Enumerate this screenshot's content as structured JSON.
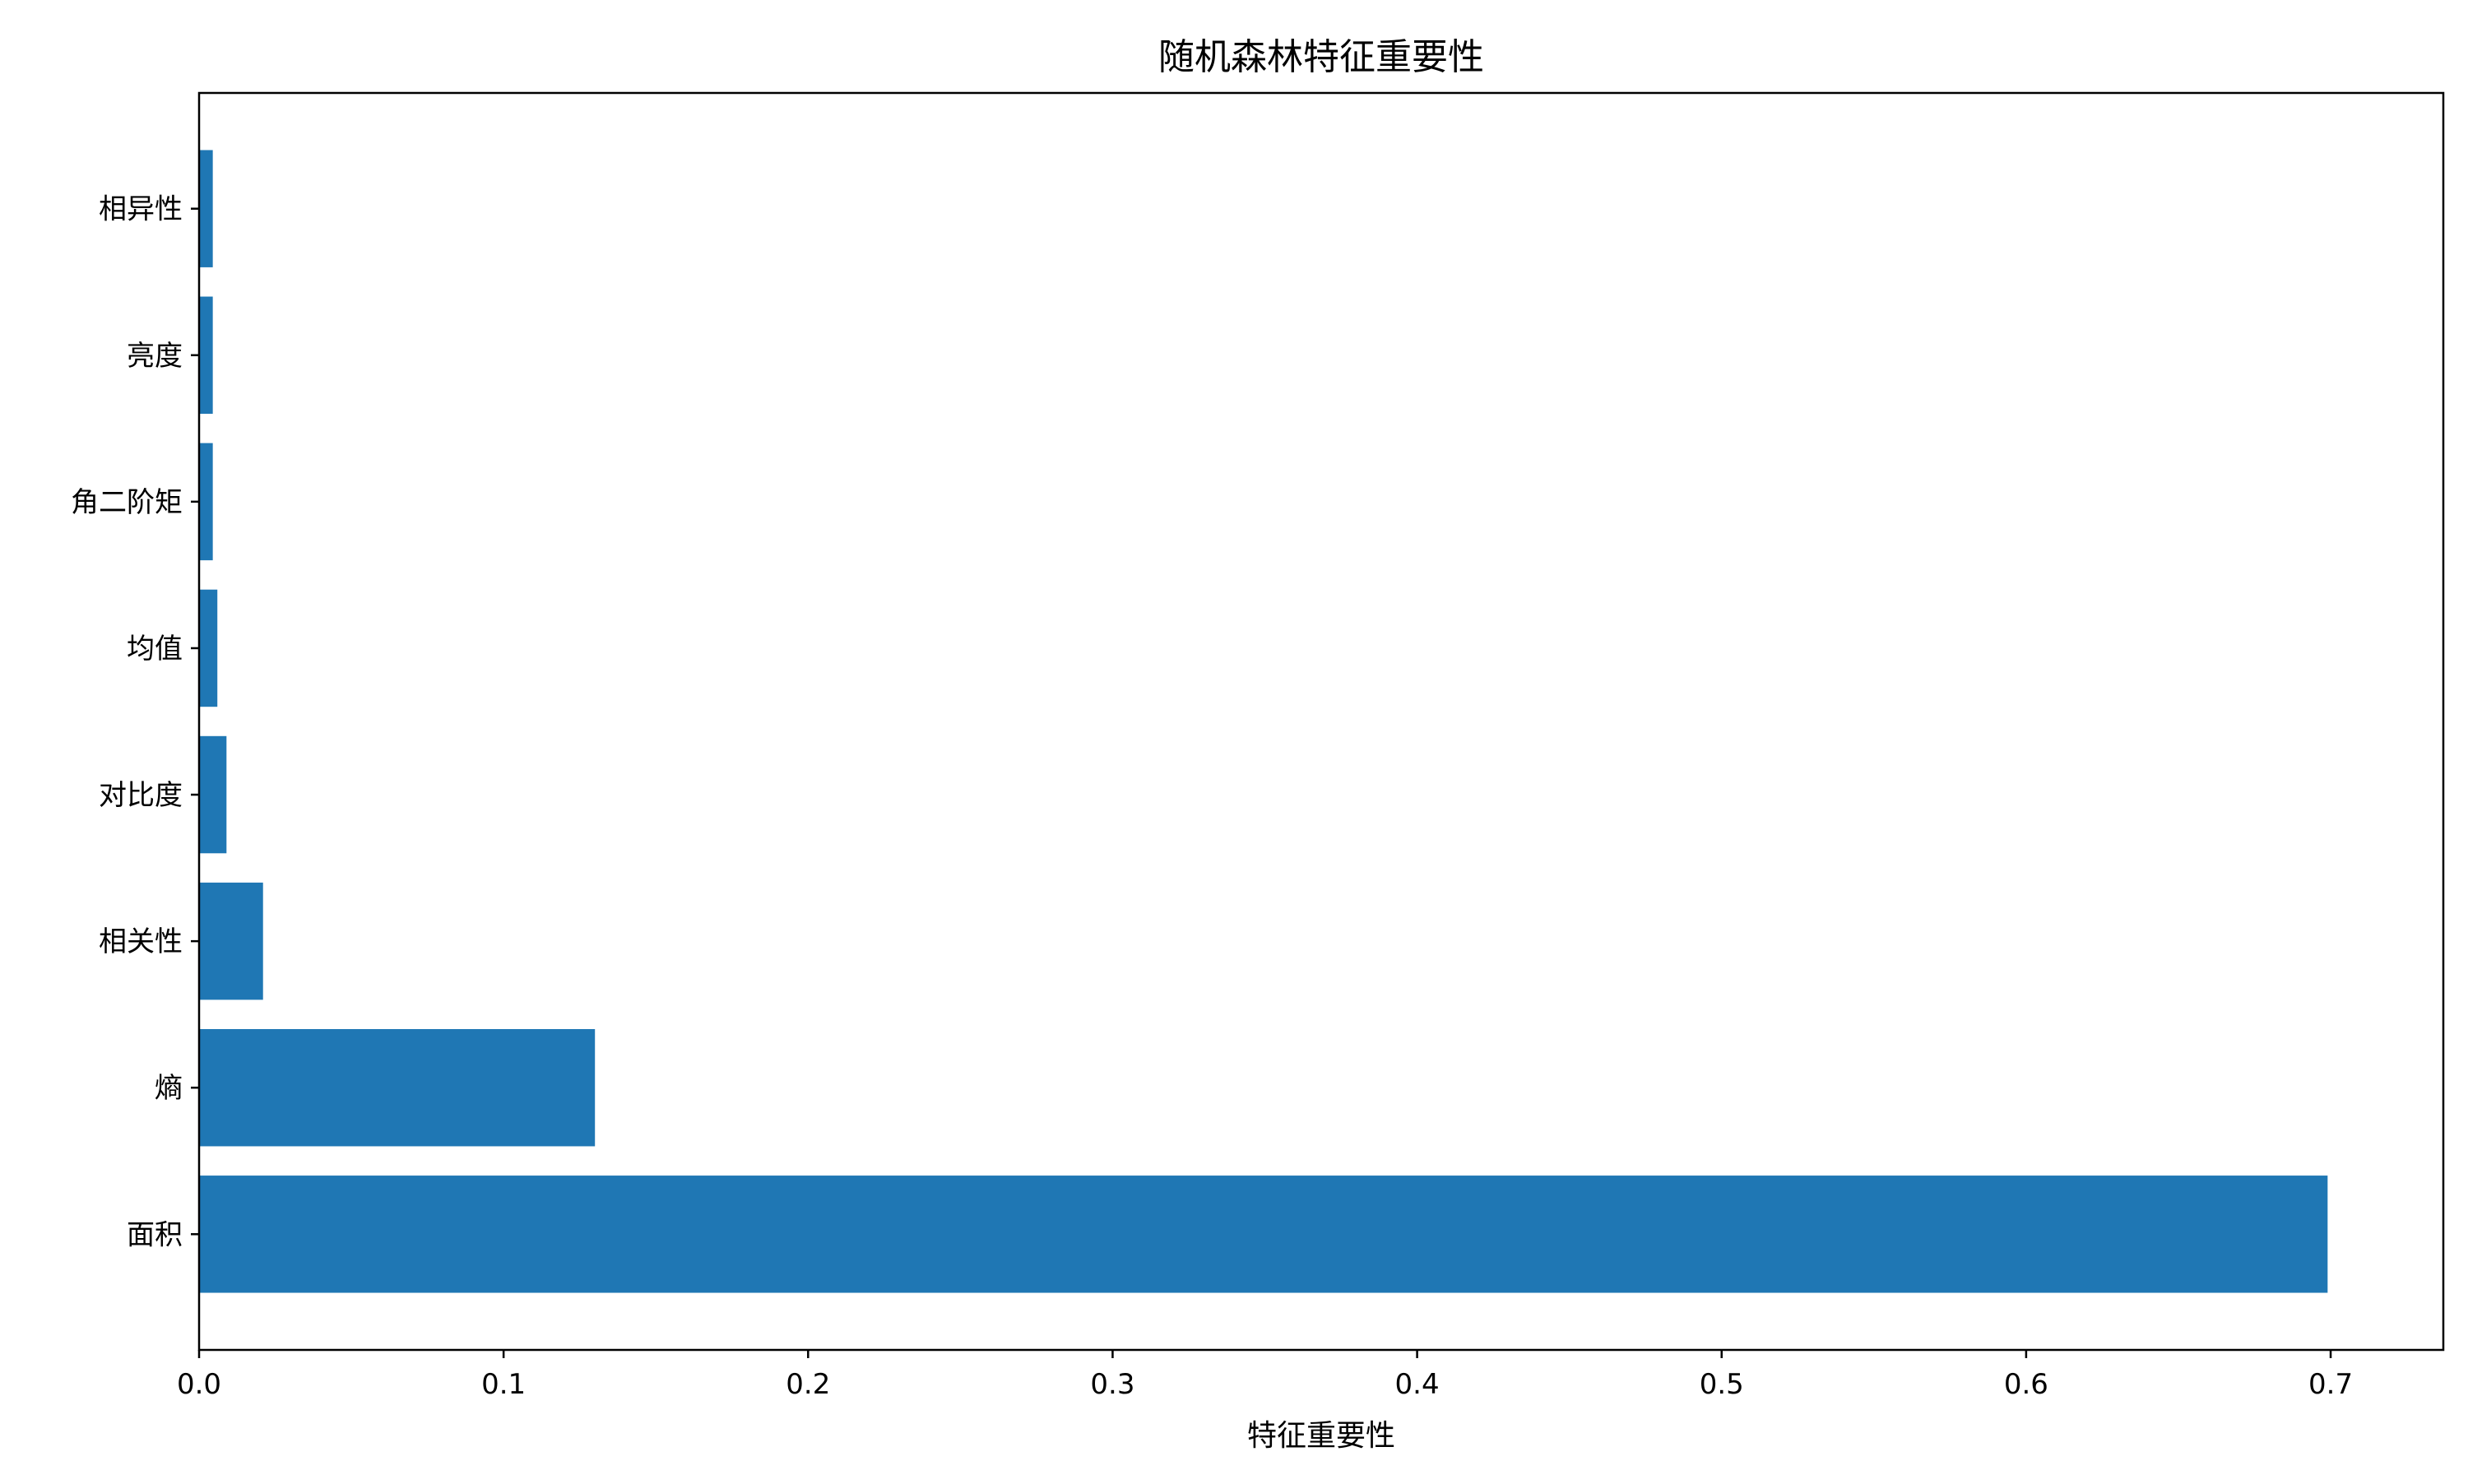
{
  "chart_data": {
    "type": "bar",
    "orientation": "horizontal",
    "title": "随机森林特征重要性",
    "xlabel": "特征重要性",
    "ylabel": "",
    "categories": [
      "面积",
      "熵",
      "相关性",
      "对比度",
      "均值",
      "角二阶矩",
      "亮度",
      "相异性"
    ],
    "values": [
      0.699,
      0.13,
      0.021,
      0.009,
      0.006,
      0.0045,
      0.0045,
      0.0045
    ],
    "xlim": [
      0,
      0.737
    ],
    "xticks": [
      0.0,
      0.1,
      0.2,
      0.3,
      0.4,
      0.5,
      0.6,
      0.7
    ],
    "xtick_labels": [
      "0.0",
      "0.1",
      "0.2",
      "0.3",
      "0.4",
      "0.5",
      "0.6",
      "0.7"
    ],
    "grid": false,
    "bar_color": "#1f77b4"
  }
}
